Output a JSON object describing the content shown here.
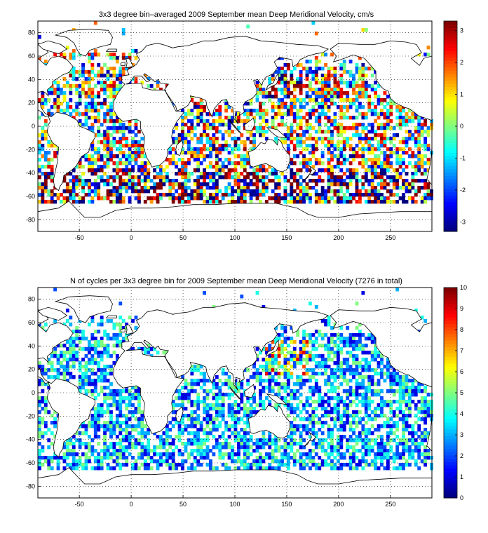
{
  "panels": [
    {
      "title": "3x3 degree bin–averaged 2009 September mean Deep Meridional Velocity, cm/s",
      "x_ticks": [
        "-50",
        "0",
        "50",
        "100",
        "150",
        "200",
        "250"
      ],
      "y_ticks": [
        "80",
        "60",
        "40",
        "20",
        "0",
        "-20",
        "-40",
        "-60",
        "-80"
      ],
      "colorbar_ticks": [
        "3",
        "2",
        "1",
        "0",
        "-1",
        "-2",
        "-3"
      ],
      "colorbar_range": [
        -3.3,
        3.3
      ],
      "colormap": "jet"
    },
    {
      "title": "N of cycles per 3x3 degree bin for 2009 September mean Deep Meridional Velocity (7276 in total)",
      "x_ticks": [
        "-50",
        "0",
        "50",
        "100",
        "150",
        "200",
        "250"
      ],
      "y_ticks": [
        "80",
        "60",
        "40",
        "20",
        "0",
        "-20",
        "-40",
        "-60",
        "-80"
      ],
      "colorbar_ticks": [
        "10",
        "9",
        "8",
        "7",
        "6",
        "5",
        "4",
        "3",
        "2",
        "1",
        "0"
      ],
      "colorbar_range": [
        0,
        10
      ],
      "colormap": "jet"
    }
  ],
  "map": {
    "lon_range": [
      -90,
      290
    ],
    "lat_range": [
      -90,
      90
    ],
    "bin_size_deg": 3,
    "grid": "dotted",
    "coastline_color": "#000000"
  }
}
